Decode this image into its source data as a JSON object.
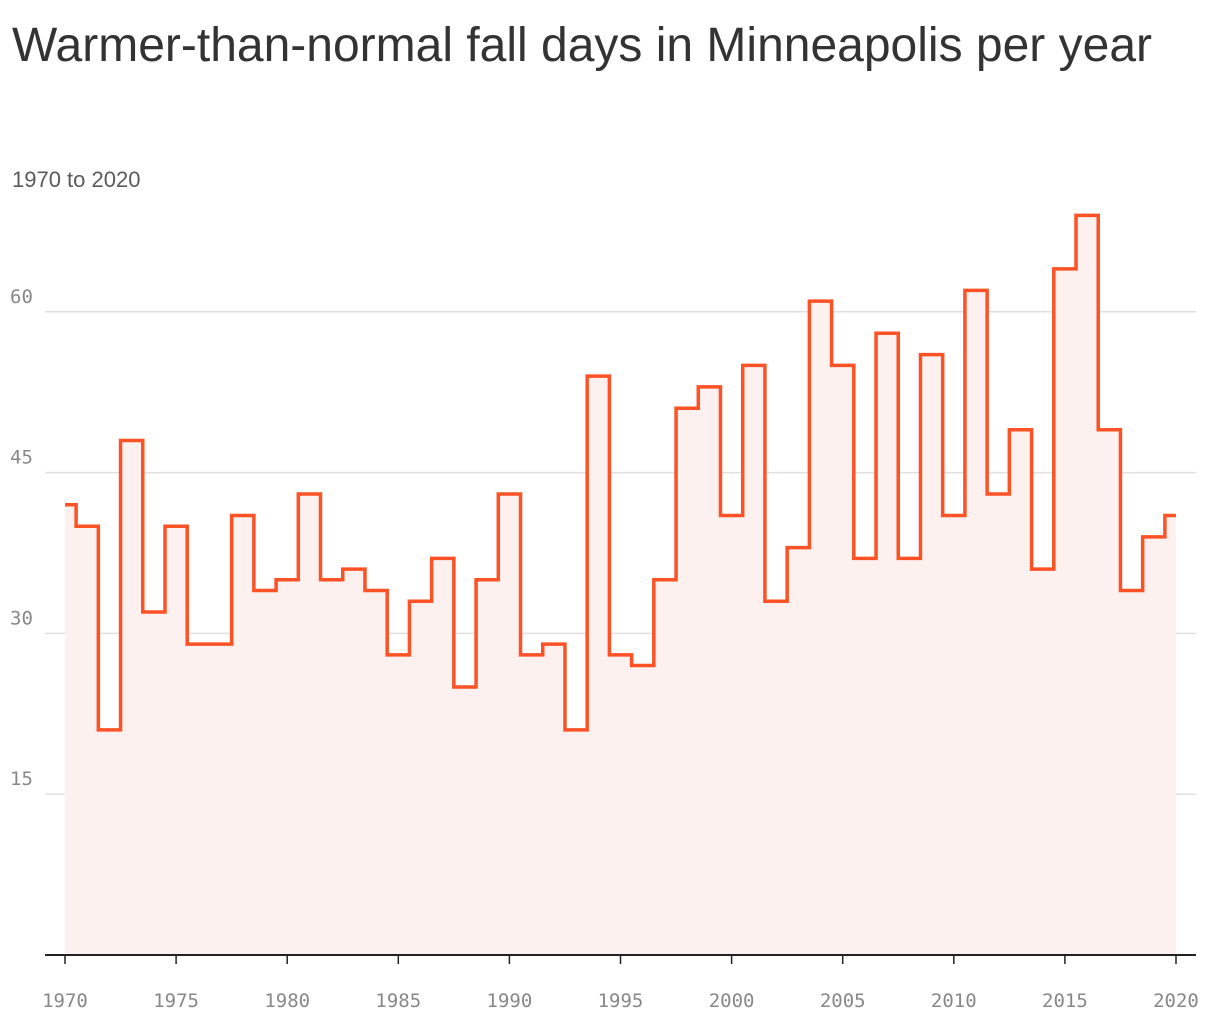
{
  "title": "Warmer-than-normal fall days in Minneapolis per year",
  "subtitle": "1970 to 2020",
  "colors": {
    "line": "#fc5225",
    "fill": "#fdf1f0",
    "grid": "#e0e0e0",
    "axis": "#222222",
    "tick_text": "#888888",
    "title": "#333333"
  },
  "chart_data": {
    "type": "line",
    "step": true,
    "area_fill": true,
    "x": [
      1970,
      1971,
      1972,
      1973,
      1974,
      1975,
      1976,
      1977,
      1978,
      1979,
      1980,
      1981,
      1982,
      1983,
      1984,
      1985,
      1986,
      1987,
      1988,
      1989,
      1990,
      1991,
      1992,
      1993,
      1994,
      1995,
      1996,
      1997,
      1998,
      1999,
      2000,
      2001,
      2002,
      2003,
      2004,
      2005,
      2006,
      2007,
      2008,
      2009,
      2010,
      2011,
      2012,
      2013,
      2014,
      2015,
      2016,
      2017,
      2018,
      2019,
      2020
    ],
    "series": [
      {
        "values": [
          42,
          40,
          21,
          48,
          32,
          40,
          29,
          29,
          41,
          34,
          35,
          43,
          35,
          36,
          34,
          28,
          33,
          37,
          25,
          35,
          43,
          28,
          29,
          21,
          54,
          28,
          27,
          35,
          51,
          53,
          41,
          55,
          33,
          38,
          61,
          55,
          37,
          58,
          37,
          56,
          41,
          62,
          43,
          49,
          36,
          64,
          69,
          49,
          34,
          39,
          41
        ]
      }
    ],
    "xlim": [
      1970,
      2020
    ],
    "ylim": [
      0,
      69
    ],
    "x_ticks": [
      "1970",
      "1975",
      "1980",
      "1985",
      "1990",
      "1995",
      "2000",
      "2005",
      "2010",
      "2015",
      "2020"
    ],
    "y_ticks": [
      "15",
      "30",
      "45",
      "60"
    ],
    "grid": true,
    "legend": "none",
    "xlabel": "",
    "ylabel": ""
  }
}
